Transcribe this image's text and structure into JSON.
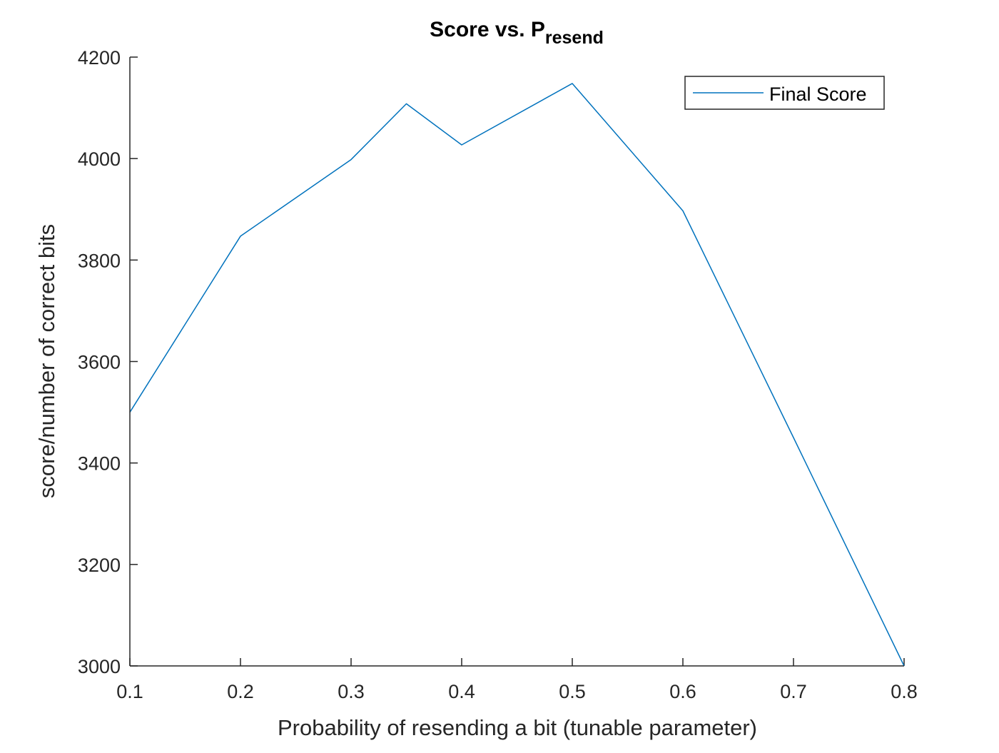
{
  "chart_data": {
    "type": "line",
    "title": "Score vs. P",
    "title_subscript": "resend",
    "xlabel": "Probability of resending a bit (tunable parameter)",
    "ylabel": "score/number of correct bits",
    "xlim": [
      0.1,
      0.8
    ],
    "ylim": [
      3000,
      4200
    ],
    "xticks": [
      "0.1",
      "0.2",
      "0.3",
      "0.4",
      "0.5",
      "0.6",
      "0.7",
      "0.8"
    ],
    "yticks": [
      "3000",
      "3200",
      "3400",
      "3600",
      "3800",
      "4000",
      "4200"
    ],
    "grid": false,
    "legend": {
      "position": "top-right",
      "entries": [
        "Final Score"
      ]
    },
    "series": [
      {
        "name": "Final Score",
        "color": "#0072BD",
        "x": [
          0.1,
          0.2,
          0.3,
          0.35,
          0.4,
          0.5,
          0.6,
          0.7,
          0.8
        ],
        "y": [
          3500,
          3847,
          3998,
          4108,
          4027,
          4148,
          3897,
          3450,
          3000
        ]
      }
    ]
  }
}
